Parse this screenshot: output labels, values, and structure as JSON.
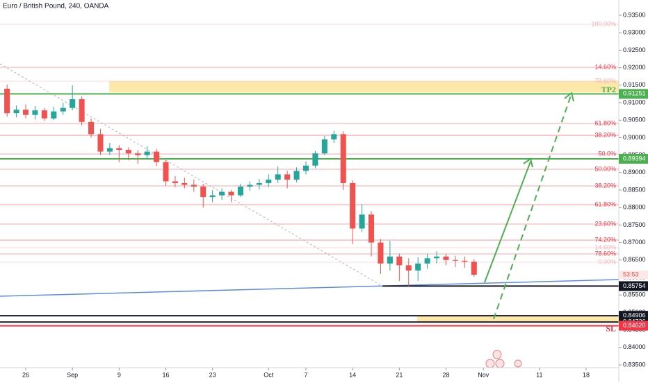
{
  "chart_data": {
    "type": "candlestick",
    "title": "Euro / British Pound, 240, OANDA",
    "up_color": "#26a69a",
    "down_color": "#ef5350",
    "x": [
      -2,
      -1,
      0,
      1,
      2,
      3,
      4,
      5,
      6,
      7,
      8,
      9,
      10,
      11,
      12,
      13,
      14,
      15,
      16,
      17,
      18,
      19,
      20,
      21,
      22,
      23,
      24,
      25,
      26,
      27,
      28,
      29,
      30,
      31,
      32,
      33,
      34,
      35,
      36,
      37,
      38,
      39,
      40,
      41,
      42,
      43,
      44,
      45,
      46,
      47,
      48
    ],
    "open": [
      0.914,
      0.907,
      0.908,
      0.9065,
      0.9078,
      0.9055,
      0.9075,
      0.9085,
      0.911,
      0.9045,
      0.901,
      0.896,
      0.897,
      0.8965,
      0.8955,
      0.895,
      0.896,
      0.893,
      0.8875,
      0.887,
      0.8865,
      0.886,
      0.883,
      0.8835,
      0.8845,
      0.8835,
      0.886,
      0.8865,
      0.887,
      0.888,
      0.8895,
      0.888,
      0.8905,
      0.892,
      0.8955,
      0.8995,
      0.901,
      0.887,
      0.874,
      0.878,
      0.87,
      0.864,
      0.866,
      0.8635,
      0.862,
      0.864,
      0.8655,
      0.866,
      0.865,
      0.8648,
      0.8645
    ],
    "high": [
      0.9152,
      0.9092,
      0.9095,
      0.909,
      0.9085,
      0.9088,
      0.91,
      0.915,
      0.9118,
      0.9055,
      0.9025,
      0.8985,
      0.8978,
      0.8972,
      0.8965,
      0.8975,
      0.8968,
      0.8935,
      0.889,
      0.8885,
      0.888,
      0.8868,
      0.885,
      0.8855,
      0.885,
      0.8868,
      0.8875,
      0.8882,
      0.8895,
      0.8918,
      0.8905,
      0.8915,
      0.8932,
      0.8962,
      0.9005,
      0.902,
      0.9018,
      0.8878,
      0.881,
      0.879,
      0.871,
      0.8705,
      0.8668,
      0.8655,
      0.8658,
      0.8668,
      0.8675,
      0.8668,
      0.8662,
      0.866,
      0.8652
    ],
    "low": [
      0.906,
      0.9058,
      0.9055,
      0.9052,
      0.9048,
      0.905,
      0.9065,
      0.9078,
      0.9035,
      0.9,
      0.895,
      0.895,
      0.893,
      0.8935,
      0.8925,
      0.894,
      0.8918,
      0.8862,
      0.8858,
      0.8855,
      0.8845,
      0.88,
      0.8815,
      0.8822,
      0.8815,
      0.883,
      0.8848,
      0.8852,
      0.8858,
      0.887,
      0.8855,
      0.8872,
      0.8895,
      0.8912,
      0.895,
      0.8985,
      0.885,
      0.8695,
      0.873,
      0.866,
      0.861,
      0.862,
      0.859,
      0.8575,
      0.859,
      0.8625,
      0.864,
      0.8635,
      0.863,
      0.8628,
      0.8602
    ],
    "close": [
      0.907,
      0.908,
      0.9065,
      0.9078,
      0.9055,
      0.9075,
      0.9085,
      0.911,
      0.9045,
      0.901,
      0.896,
      0.897,
      0.8965,
      0.8955,
      0.895,
      0.896,
      0.893,
      0.8875,
      0.887,
      0.8865,
      0.886,
      0.883,
      0.8835,
      0.8845,
      0.8835,
      0.886,
      0.8865,
      0.887,
      0.888,
      0.8895,
      0.888,
      0.8905,
      0.892,
      0.8955,
      0.8995,
      0.901,
      0.887,
      0.874,
      0.878,
      0.87,
      0.864,
      0.866,
      0.8635,
      0.862,
      0.864,
      0.8655,
      0.866,
      0.865,
      0.8648,
      0.8645,
      0.8608
    ],
    "countdown": "53:53",
    "xlim": [
      -2.755,
      63.5
    ],
    "xticks": [
      {
        "value": 0,
        "label": "26"
      },
      {
        "value": 5,
        "label": "Sep"
      },
      {
        "value": 10,
        "label": "9"
      },
      {
        "value": 15,
        "label": "16"
      },
      {
        "value": 20,
        "label": "23"
      },
      {
        "value": 26,
        "label": "Oct"
      },
      {
        "value": 30,
        "label": "7"
      },
      {
        "value": 35,
        "label": "14"
      },
      {
        "value": 40,
        "label": "21"
      },
      {
        "value": 45,
        "label": "28"
      },
      {
        "value": 49,
        "label": "Nov"
      },
      {
        "value": 55,
        "label": "11"
      },
      {
        "value": 60,
        "label": "18"
      }
    ],
    "ylim": [
      0.83421,
      0.93937
    ],
    "yticks": [
      {
        "value": 0.935,
        "label": "0.93500"
      },
      {
        "value": 0.93,
        "label": "0.93000"
      },
      {
        "value": 0.925,
        "label": "0.92500"
      },
      {
        "value": 0.92,
        "label": "0.92000"
      },
      {
        "value": 0.915,
        "label": "0.91500"
      },
      {
        "value": 0.91,
        "label": "0.91000"
      },
      {
        "value": 0.905,
        "label": "0.90500"
      },
      {
        "value": 0.9,
        "label": "0.90000"
      },
      {
        "value": 0.895,
        "label": "0.89500"
      },
      {
        "value": 0.89,
        "label": "0.89000"
      },
      {
        "value": 0.885,
        "label": "0.88500"
      },
      {
        "value": 0.88,
        "label": "0.88000"
      },
      {
        "value": 0.875,
        "label": "0.87500"
      },
      {
        "value": 0.87,
        "label": "0.87000"
      },
      {
        "value": 0.865,
        "label": "0.86500"
      },
      {
        "value": 0.86,
        "label": "0.86000"
      },
      {
        "value": 0.855,
        "label": "0.85500"
      },
      {
        "value": 0.85,
        "label": "0.85000"
      },
      {
        "value": 0.845,
        "label": "0.84500"
      },
      {
        "value": 0.84,
        "label": "0.84000"
      },
      {
        "value": 0.835,
        "label": "0.83500"
      }
    ],
    "levels": [
      {
        "label": "100.00%",
        "value": 0.93242,
        "color": "#f7b0b0"
      },
      {
        "label": "14.60%",
        "value": 0.92012,
        "color": "#f23645"
      },
      {
        "label": "78.60%",
        "value": 0.91615,
        "color": "#f7b0b0"
      },
      {
        "label": "61.80%",
        "value": 0.90405,
        "color": "#f23645"
      },
      {
        "label": "38.20%",
        "value": 0.90067,
        "color": "#f23645"
      },
      {
        "label": "50.0%",
        "value": 0.89532,
        "color": "#f23645"
      },
      {
        "label": "50.00%",
        "value": 0.89095,
        "color": "#f23645"
      },
      {
        "label": "38.20%",
        "value": 0.88619,
        "color": "#f23645"
      },
      {
        "label": "61.80%",
        "value": 0.88083,
        "color": "#f23645"
      },
      {
        "label": "23.60%",
        "value": 0.87528,
        "color": "#f23645"
      },
      {
        "label": "74.20%",
        "value": 0.87071,
        "color": "#f23645"
      },
      {
        "label": "14.60%",
        "value": 0.86853,
        "color": "#f7b0b0"
      },
      {
        "label": "78.60%",
        "value": 0.86675,
        "color": "#f23645"
      },
      {
        "label": "0.00%",
        "value": 0.86437,
        "color": "#f7b0b0"
      }
    ],
    "zones": [
      {
        "top": 0.91615,
        "bottom": 0.9129,
        "from": 8.94,
        "color": "#fde7a9"
      },
      {
        "top": 0.84906,
        "bottom": 0.84726,
        "from": 41.9,
        "color": "#fde7a9"
      }
    ],
    "hlines": [
      {
        "value": 0.91251,
        "label": "0.91251",
        "color": "#4caf50",
        "tag": "TP2"
      },
      {
        "value": 0.89394,
        "label": "0.89394",
        "color": "#4caf50"
      },
      {
        "value": 0.85754,
        "label": "0.85754",
        "color": "#131722",
        "from": 38.2
      },
      {
        "value": 0.84906,
        "label": "0.84906",
        "color": "#131722"
      },
      {
        "value": 0.84726,
        "label": "0.84726",
        "color": "#131722"
      },
      {
        "value": 0.8462,
        "label": "0.84620",
        "color": "#f23645",
        "tag": "SL"
      }
    ],
    "trendlines": [
      {
        "x": [
          -2.755,
          63.5
        ],
        "y": [
          0.85464,
          0.8594
        ],
        "color": "#5b8ddb",
        "dash": false
      },
      {
        "x": [
          -2.755,
          38.2
        ],
        "y": [
          0.92111,
          0.85754
        ],
        "color": "#b0b3bb",
        "dash": true
      }
    ]
  }
}
